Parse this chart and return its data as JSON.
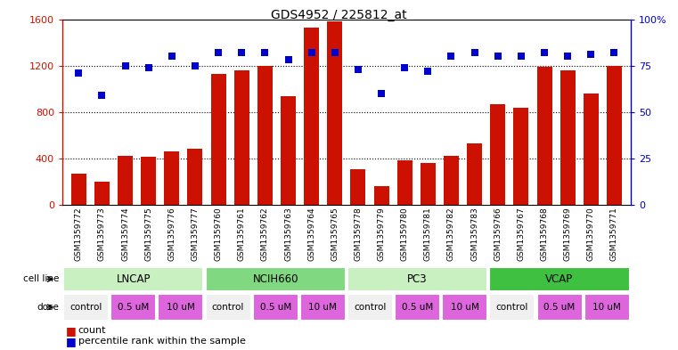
{
  "title": "GDS4952 / 225812_at",
  "samples": [
    "GSM1359772",
    "GSM1359773",
    "GSM1359774",
    "GSM1359775",
    "GSM1359776",
    "GSM1359777",
    "GSM1359760",
    "GSM1359761",
    "GSM1359762",
    "GSM1359763",
    "GSM1359764",
    "GSM1359765",
    "GSM1359778",
    "GSM1359779",
    "GSM1359780",
    "GSM1359781",
    "GSM1359782",
    "GSM1359783",
    "GSM1359766",
    "GSM1359767",
    "GSM1359768",
    "GSM1359769",
    "GSM1359770",
    "GSM1359771"
  ],
  "counts": [
    270,
    200,
    420,
    415,
    460,
    480,
    1130,
    1160,
    1200,
    940,
    1530,
    1580,
    310,
    160,
    380,
    360,
    420,
    530,
    870,
    840,
    1190,
    1160,
    960,
    1200
  ],
  "percentiles": [
    71,
    59,
    75,
    74,
    80,
    75,
    82,
    82,
    82,
    78,
    82,
    82,
    73,
    60,
    74,
    72,
    80,
    82,
    80,
    80,
    82,
    80,
    81,
    82
  ],
  "cell_lines": [
    {
      "label": "LNCAP",
      "start": 0,
      "end": 6,
      "color": "#c8f0c0"
    },
    {
      "label": "NCIH660",
      "start": 6,
      "end": 12,
      "color": "#80d880"
    },
    {
      "label": "PC3",
      "start": 12,
      "end": 18,
      "color": "#c8f0c0"
    },
    {
      "label": "VCAP",
      "start": 18,
      "end": 24,
      "color": "#40c040"
    }
  ],
  "doses": [
    {
      "label": "control",
      "start": 0,
      "end": 2,
      "color": "#f0f0f0"
    },
    {
      "label": "0.5 uM",
      "start": 2,
      "end": 4,
      "color": "#dd66dd"
    },
    {
      "label": "10 uM",
      "start": 4,
      "end": 6,
      "color": "#dd66dd"
    },
    {
      "label": "control",
      "start": 6,
      "end": 8,
      "color": "#f0f0f0"
    },
    {
      "label": "0.5 uM",
      "start": 8,
      "end": 10,
      "color": "#dd66dd"
    },
    {
      "label": "10 uM",
      "start": 10,
      "end": 12,
      "color": "#dd66dd"
    },
    {
      "label": "control",
      "start": 12,
      "end": 14,
      "color": "#f0f0f0"
    },
    {
      "label": "0.5 uM",
      "start": 14,
      "end": 16,
      "color": "#dd66dd"
    },
    {
      "label": "10 uM",
      "start": 16,
      "end": 18,
      "color": "#dd66dd"
    },
    {
      "label": "control",
      "start": 18,
      "end": 20,
      "color": "#f0f0f0"
    },
    {
      "label": "0.5 uM",
      "start": 20,
      "end": 22,
      "color": "#dd66dd"
    },
    {
      "label": "10 uM",
      "start": 22,
      "end": 24,
      "color": "#dd66dd"
    }
  ],
  "bar_color": "#cc1100",
  "dot_color": "#0000cc",
  "ylim_left": [
    0,
    1600
  ],
  "ylim_right": [
    0,
    100
  ],
  "yticks_left": [
    0,
    400,
    800,
    1200,
    1600
  ],
  "yticks_right": [
    0,
    25,
    50,
    75,
    100
  ],
  "grid_lines": [
    400,
    800,
    1200
  ],
  "xtick_bg_color": "#c8c8c8",
  "cell_line_border": "#ffffff",
  "dose_border": "#ffffff"
}
